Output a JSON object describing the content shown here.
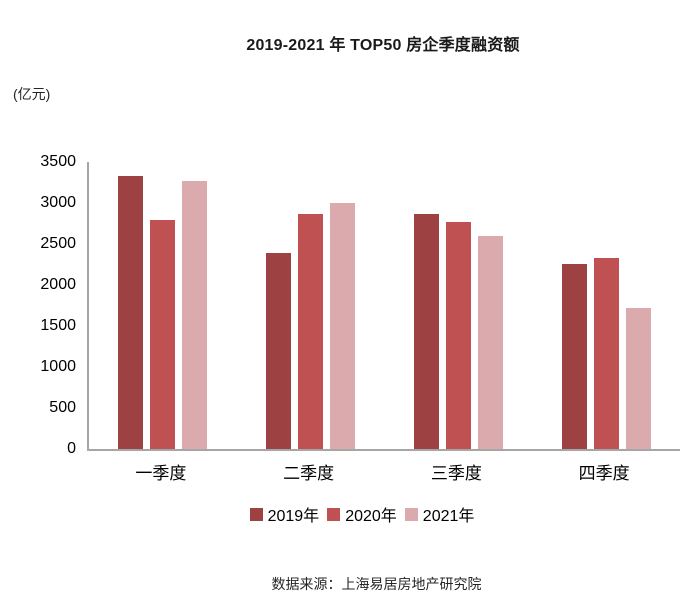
{
  "title": "2019-2021 年 TOP50 房企季度融资额",
  "unit_label": "(亿元)",
  "source_note": "数据来源：上海易居房地产研究院",
  "chart_data": {
    "type": "bar",
    "title": "2019-2021 年 TOP50 房企季度融资额",
    "ylabel": "(亿元)",
    "xlabel": "",
    "categories": [
      "一季度",
      "二季度",
      "三季度",
      "四季度"
    ],
    "series": [
      {
        "name": "2019年",
        "color": "#9E4143",
        "values": [
          3330,
          2390,
          2870,
          2250
        ]
      },
      {
        "name": "2020年",
        "color": "#C05152",
        "values": [
          2790,
          2870,
          2770,
          2330
        ]
      },
      {
        "name": "2021年",
        "color": "#DAAAAC",
        "values": [
          3270,
          3000,
          2600,
          1720
        ]
      }
    ],
    "ylim": [
      0,
      3500
    ],
    "yticks": [
      0,
      500,
      1000,
      1500,
      2000,
      2500,
      3000,
      3500
    ],
    "grid": false,
    "legend_position": "bottom",
    "axis_color": "#A6A6A6"
  }
}
